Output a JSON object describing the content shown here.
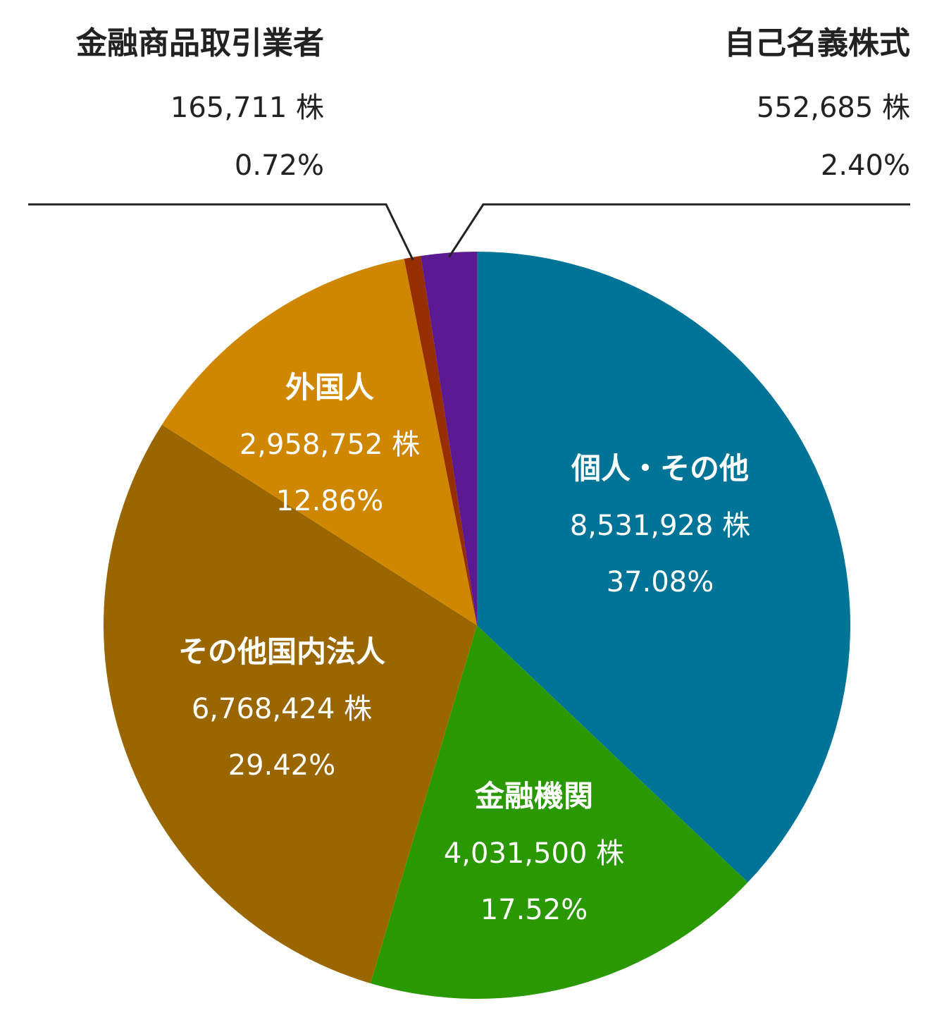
{
  "chart_data": {
    "type": "pie",
    "unit": "株",
    "start": "top",
    "direction": "clockwise",
    "slices": [
      {
        "label": "個人・その他",
        "shares": 8531928,
        "shares_text": "8,531,928 株",
        "percent": 37.08,
        "percent_text": "37.08%",
        "color": "#007497",
        "label_position": "inside"
      },
      {
        "label": "金融機関",
        "shares": 4031500,
        "shares_text": "4,031,500 株",
        "percent": 17.52,
        "percent_text": "17.52%",
        "color": "#2a9800",
        "label_position": "inside"
      },
      {
        "label": "その他国内法人",
        "shares": 6768424,
        "shares_text": "6,768,424 株",
        "percent": 29.42,
        "percent_text": "29.42%",
        "color": "#9a6600",
        "label_position": "inside"
      },
      {
        "label": "外国人",
        "shares": 2958752,
        "shares_text": "2,958,752 株",
        "percent": 12.86,
        "percent_text": "12.86%",
        "color": "#d08700",
        "label_position": "inside"
      },
      {
        "label": "金融商品取引業者",
        "shares": 165711,
        "shares_text": "165,711 株",
        "percent": 0.72,
        "percent_text": "0.72%",
        "color": "#962e00",
        "label_position": "outside-top-left"
      },
      {
        "label": "自己名義株式",
        "shares": 552685,
        "shares_text": "552,685 株",
        "percent": 2.4,
        "percent_text": "2.40%",
        "color": "#5b1a92",
        "label_position": "outside-top-right"
      }
    ],
    "label_colors": {
      "inside": "#ffffff",
      "outside": "#222222",
      "leader_line": "#222222"
    }
  }
}
